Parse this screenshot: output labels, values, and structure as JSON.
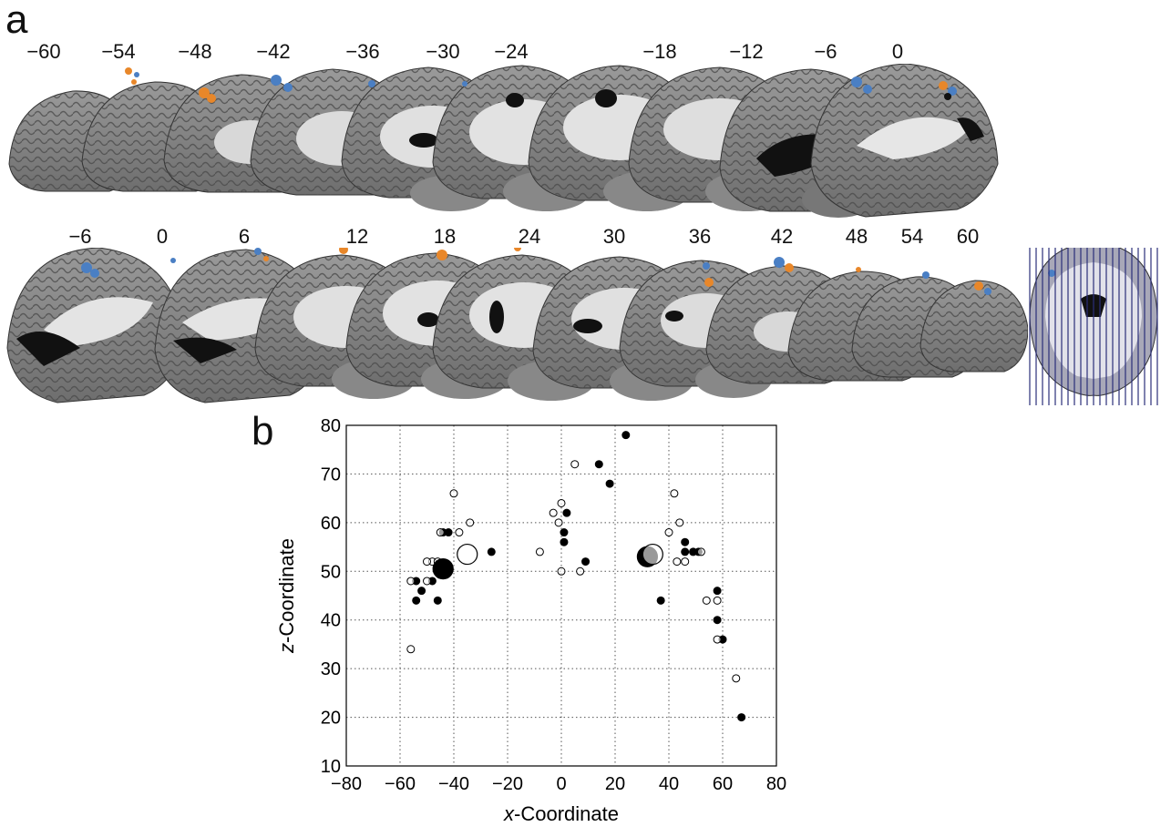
{
  "panel_a": {
    "letter": "a",
    "row1_labels": [
      "−60",
      "−54",
      "−48",
      "−42",
      "−36",
      "−30",
      "−24",
      "−18",
      "−12",
      "−6",
      "0"
    ],
    "row2_labels": [
      "−6",
      "0",
      "6",
      "12",
      "18",
      "24",
      "30",
      "36",
      "42",
      "48",
      "54",
      "60"
    ],
    "colors": {
      "blue": "#4a7fc4",
      "orange": "#e8872a",
      "slice_lines": "#2b2f7a"
    }
  },
  "panel_b": {
    "letter": "b"
  },
  "chart_data": {
    "type": "scatter",
    "title": "",
    "xlabel": "x-Coordinate",
    "ylabel": "z-Coordinate",
    "xlim": [
      -80,
      80
    ],
    "ylim": [
      10,
      80
    ],
    "xticks": [
      -80,
      -60,
      -40,
      -20,
      0,
      20,
      40,
      60,
      80
    ],
    "yticks": [
      10,
      20,
      30,
      40,
      50,
      60,
      70,
      80
    ],
    "grid": true,
    "series": [
      {
        "marker": "filled",
        "color": "#000000",
        "points": [
          [
            24,
            78
          ],
          [
            14,
            72
          ],
          [
            18,
            68
          ],
          [
            2,
            62
          ],
          [
            1,
            58
          ],
          [
            1,
            56
          ],
          [
            -44,
            58
          ],
          [
            -42,
            58
          ],
          [
            -26,
            54
          ],
          [
            9,
            52
          ],
          [
            -54,
            48
          ],
          [
            -48,
            48
          ],
          [
            -52,
            46
          ],
          [
            -54,
            44
          ],
          [
            -46,
            44
          ],
          [
            37,
            44
          ],
          [
            46,
            56
          ],
          [
            46,
            54
          ],
          [
            49,
            54
          ],
          [
            51,
            54
          ],
          [
            58,
            46
          ],
          [
            58,
            40
          ],
          [
            60,
            36
          ],
          [
            67,
            20
          ]
        ]
      },
      {
        "marker": "open",
        "color": "#000000",
        "points": [
          [
            5,
            72
          ],
          [
            -40,
            66
          ],
          [
            42,
            66
          ],
          [
            0,
            64
          ],
          [
            -3,
            62
          ],
          [
            -1,
            60
          ],
          [
            -34,
            60
          ],
          [
            -45,
            58
          ],
          [
            -38,
            58
          ],
          [
            44,
            60
          ],
          [
            40,
            58
          ],
          [
            -8,
            54
          ],
          [
            -48,
            52
          ],
          [
            -46,
            52
          ],
          [
            -50,
            52
          ],
          [
            0,
            50
          ],
          [
            7,
            50
          ],
          [
            43,
            52
          ],
          [
            46,
            52
          ],
          [
            52,
            54
          ],
          [
            54,
            44
          ],
          [
            58,
            44
          ],
          [
            58,
            36
          ],
          [
            65,
            28
          ],
          [
            -56,
            34
          ],
          [
            -56,
            48
          ],
          [
            -50,
            48
          ]
        ]
      },
      {
        "marker": "filled-large",
        "color": "#000000",
        "points": [
          [
            -44,
            50.5
          ],
          [
            32,
            53
          ]
        ]
      },
      {
        "marker": "open-large",
        "color": "#000000",
        "points": [
          [
            -35,
            53.5
          ],
          [
            34,
            53.5
          ]
        ]
      }
    ]
  }
}
